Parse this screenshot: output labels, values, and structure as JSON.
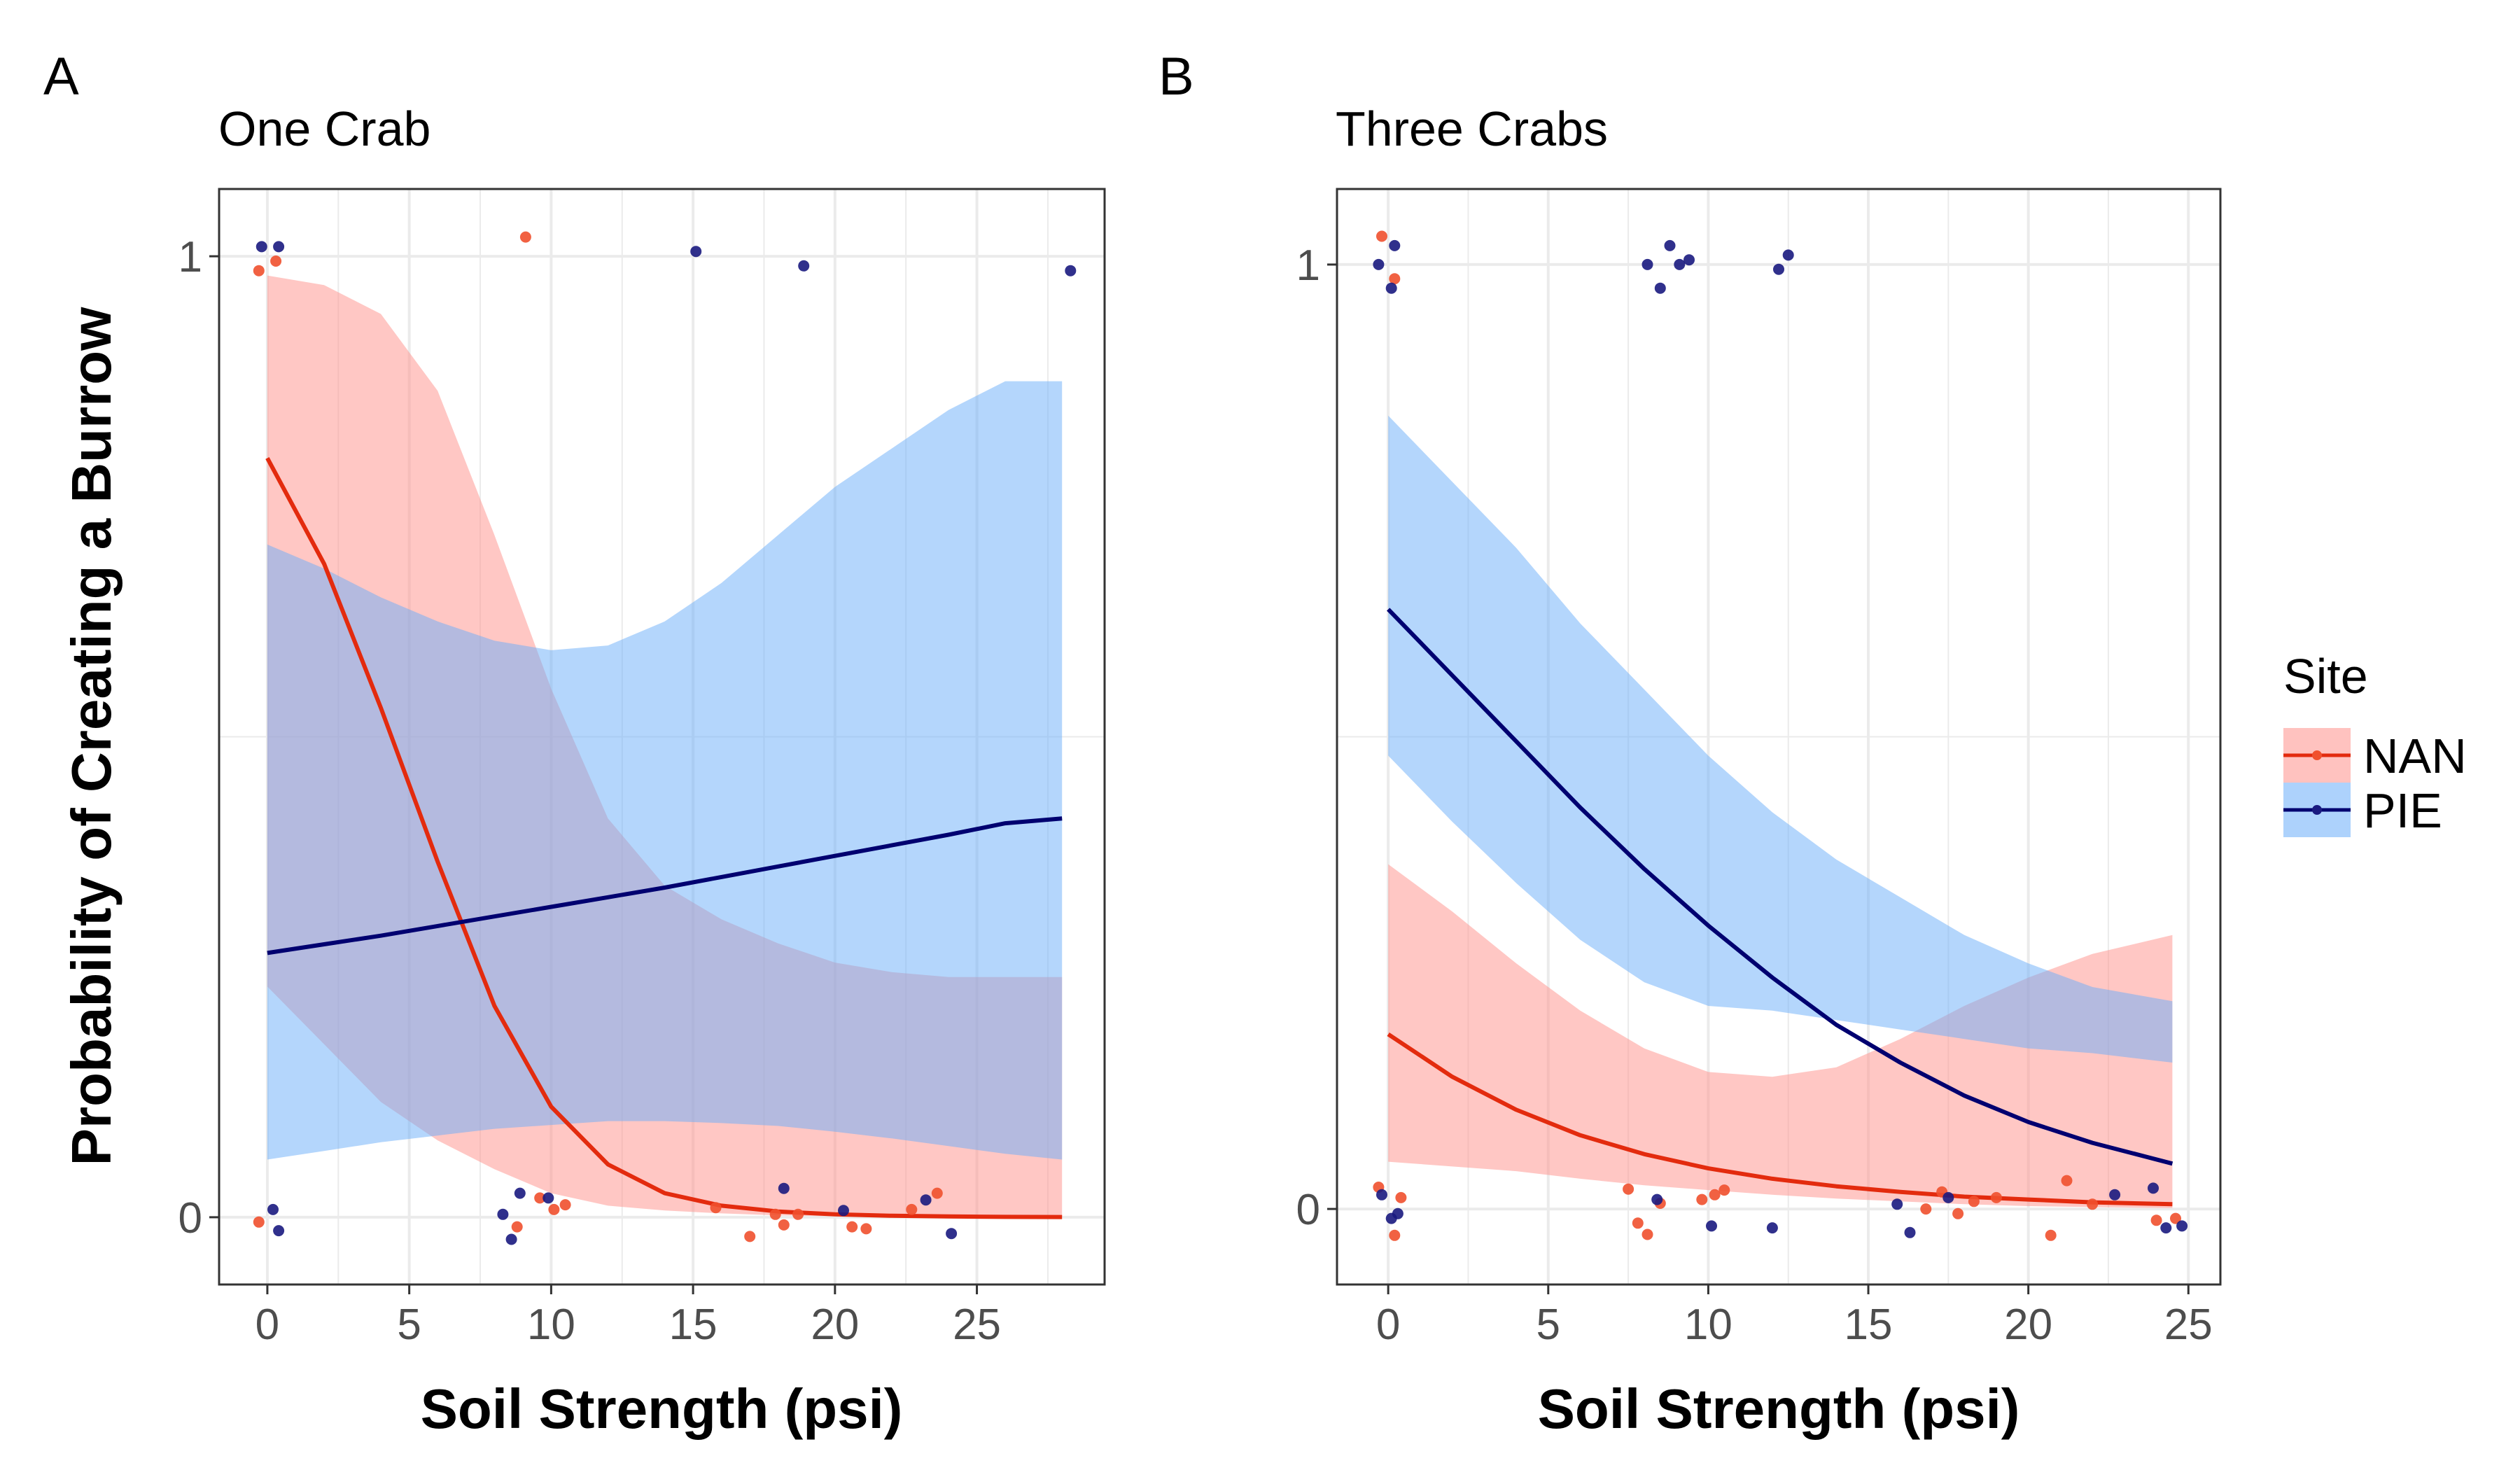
{
  "legend": {
    "title": "Site",
    "entries": [
      {
        "name": "NAN",
        "line_color": "#E32B0E",
        "ribbon_color": "#FF8F8A",
        "point_color": "#F0502E"
      },
      {
        "name": "PIE",
        "line_color": "#000070",
        "ribbon_color": "#6AADFA",
        "point_color": "#1A1A80"
      }
    ]
  },
  "chart_data": [
    {
      "type": "line",
      "panel_label": "A",
      "title": "One Crab",
      "xlabel": "Soil Strength (psi)",
      "ylabel": "Probability of Creating a Burrow",
      "xlim": [
        -1.7,
        29.5
      ],
      "ylim": [
        -0.07,
        1.07
      ],
      "xticks": [
        0,
        5,
        10,
        15,
        20,
        25
      ],
      "xtick_labels": [
        "0",
        "5",
        "10",
        "15",
        "20",
        "25"
      ],
      "yticks": [
        0,
        1
      ],
      "ytick_labels": [
        "0",
        "1"
      ],
      "grid": true,
      "series": [
        {
          "name": "NAN",
          "x": [
            0,
            2,
            4,
            6,
            8,
            10,
            12,
            14,
            16,
            18,
            20,
            22,
            24,
            26,
            28
          ],
          "y": [
            0.79,
            0.68,
            0.53,
            0.37,
            0.22,
            0.115,
            0.055,
            0.025,
            0.012,
            0.006,
            0.003,
            0.0015,
            0.0008,
            0.0004,
            0.0002
          ],
          "ci_lower": [
            0.24,
            0.18,
            0.12,
            0.08,
            0.05,
            0.025,
            0.012,
            0.007,
            0.004,
            0.002,
            0.001,
            0.0006,
            0.0003,
            0.0002,
            0.0001
          ],
          "ci_upper": [
            0.98,
            0.97,
            0.94,
            0.86,
            0.71,
            0.55,
            0.415,
            0.345,
            0.31,
            0.285,
            0.265,
            0.255,
            0.25,
            0.25,
            0.25
          ],
          "points": [
            [
              -0.3,
              -0.005
            ],
            [
              -0.3,
              0.985
            ],
            [
              0.3,
              0.995
            ],
            [
              9.1,
              1.02
            ],
            [
              8.8,
              -0.01
            ],
            [
              9.6,
              0.02
            ],
            [
              10.1,
              0.008
            ],
            [
              10.5,
              0.013
            ],
            [
              15.8,
              0.01
            ],
            [
              17.0,
              -0.02
            ],
            [
              17.9,
              0.003
            ],
            [
              18.2,
              -0.008
            ],
            [
              18.7,
              0.003
            ],
            [
              20.6,
              -0.01
            ],
            [
              21.1,
              -0.012
            ],
            [
              22.7,
              0.008
            ],
            [
              23.6,
              0.025
            ]
          ]
        },
        {
          "name": "PIE",
          "x": [
            0,
            2,
            4,
            6,
            8,
            10,
            12,
            14,
            16,
            18,
            20,
            22,
            24,
            26,
            28
          ],
          "y": [
            0.275,
            0.284,
            0.293,
            0.303,
            0.313,
            0.323,
            0.333,
            0.343,
            0.354,
            0.365,
            0.376,
            0.387,
            0.398,
            0.41,
            0.415
          ],
          "ci_lower": [
            0.06,
            0.069,
            0.078,
            0.085,
            0.092,
            0.096,
            0.1,
            0.1,
            0.098,
            0.095,
            0.089,
            0.082,
            0.074,
            0.066,
            0.06
          ],
          "ci_upper": [
            0.7,
            0.675,
            0.645,
            0.62,
            0.6,
            0.59,
            0.595,
            0.62,
            0.66,
            0.71,
            0.76,
            0.8,
            0.84,
            0.87,
            0.87
          ],
          "points": [
            [
              -0.2,
              1.01
            ],
            [
              0.4,
              1.01
            ],
            [
              0.2,
              0.008
            ],
            [
              0.4,
              -0.014
            ],
            [
              8.3,
              0.003
            ],
            [
              8.6,
              -0.023
            ],
            [
              8.9,
              0.025
            ],
            [
              9.9,
              0.02
            ],
            [
              15.1,
              1.005
            ],
            [
              18.9,
              0.99
            ],
            [
              28.3,
              0.985
            ],
            [
              18.2,
              0.03
            ],
            [
              20.3,
              0.007
            ],
            [
              23.2,
              0.018
            ],
            [
              24.1,
              -0.017
            ]
          ]
        }
      ]
    },
    {
      "type": "line",
      "panel_label": "B",
      "title": "Three Crabs",
      "xlabel": "Soil Strength (psi)",
      "ylabel": "",
      "xlim": [
        -1.6,
        26.0
      ],
      "ylim": [
        -0.08,
        1.08
      ],
      "xticks": [
        0,
        5,
        10,
        15,
        20,
        25
      ],
      "xtick_labels": [
        "0",
        "5",
        "10",
        "15",
        "20",
        "25"
      ],
      "yticks": [
        0,
        1
      ],
      "ytick_labels": [
        "0",
        "1"
      ],
      "grid": true,
      "series": [
        {
          "name": "NAN",
          "x": [
            0,
            2,
            4,
            6,
            8,
            10,
            12,
            14,
            16,
            18,
            20,
            22,
            24.5
          ],
          "y": [
            0.185,
            0.14,
            0.105,
            0.078,
            0.058,
            0.043,
            0.032,
            0.024,
            0.018,
            0.013,
            0.01,
            0.007,
            0.005
          ],
          "ci_lower": [
            0.05,
            0.045,
            0.04,
            0.032,
            0.025,
            0.02,
            0.015,
            0.011,
            0.008,
            0.005,
            0.003,
            0.002,
            0.001
          ],
          "ci_upper": [
            0.365,
            0.315,
            0.26,
            0.21,
            0.17,
            0.145,
            0.14,
            0.15,
            0.18,
            0.215,
            0.245,
            0.27,
            0.29
          ],
          "points": [
            [
              -0.2,
              1.03
            ],
            [
              0.2,
              0.985
            ],
            [
              -0.3,
              0.023
            ],
            [
              0.4,
              0.012
            ],
            [
              0.2,
              -0.028
            ],
            [
              7.5,
              0.021
            ],
            [
              7.8,
              -0.015
            ],
            [
              8.1,
              -0.027
            ],
            [
              8.5,
              0.006
            ],
            [
              9.8,
              0.01
            ],
            [
              10.2,
              0.015
            ],
            [
              10.5,
              0.02
            ],
            [
              16.8,
              0.0
            ],
            [
              17.3,
              0.018
            ],
            [
              17.8,
              -0.005
            ],
            [
              18.3,
              0.008
            ],
            [
              19.0,
              0.012
            ],
            [
              20.7,
              -0.028
            ],
            [
              21.2,
              0.03
            ],
            [
              22.0,
              0.005
            ],
            [
              24.0,
              -0.012
            ],
            [
              24.6,
              -0.01
            ]
          ]
        },
        {
          "name": "PIE",
          "x": [
            0,
            2,
            4,
            6,
            8,
            10,
            12,
            14,
            16,
            18,
            20,
            22,
            24.5
          ],
          "y": [
            0.635,
            0.565,
            0.495,
            0.425,
            0.36,
            0.3,
            0.245,
            0.195,
            0.155,
            0.12,
            0.092,
            0.07,
            0.048
          ],
          "ci_lower": [
            0.48,
            0.41,
            0.345,
            0.285,
            0.24,
            0.215,
            0.21,
            0.2,
            0.19,
            0.18,
            0.17,
            0.165,
            0.155
          ],
          "ci_upper": [
            0.84,
            0.77,
            0.7,
            0.62,
            0.55,
            0.48,
            0.42,
            0.37,
            0.33,
            0.29,
            0.26,
            0.235,
            0.22
          ],
          "points": [
            [
              -0.3,
              1.0
            ],
            [
              0.1,
              0.975
            ],
            [
              0.2,
              1.02
            ],
            [
              8.1,
              1.0
            ],
            [
              8.5,
              0.975
            ],
            [
              8.8,
              1.02
            ],
            [
              9.1,
              1.0
            ],
            [
              9.4,
              1.005
            ],
            [
              12.2,
              0.995
            ],
            [
              12.5,
              1.01
            ],
            [
              -0.2,
              0.015
            ],
            [
              0.1,
              -0.01
            ],
            [
              0.3,
              -0.005
            ],
            [
              8.4,
              0.01
            ],
            [
              10.1,
              -0.018
            ],
            [
              12.0,
              -0.02
            ],
            [
              15.9,
              0.005
            ],
            [
              16.3,
              -0.025
            ],
            [
              17.5,
              0.012
            ],
            [
              22.7,
              0.015
            ],
            [
              23.9,
              0.022
            ],
            [
              24.3,
              -0.02
            ],
            [
              24.8,
              -0.018
            ]
          ]
        }
      ]
    }
  ]
}
